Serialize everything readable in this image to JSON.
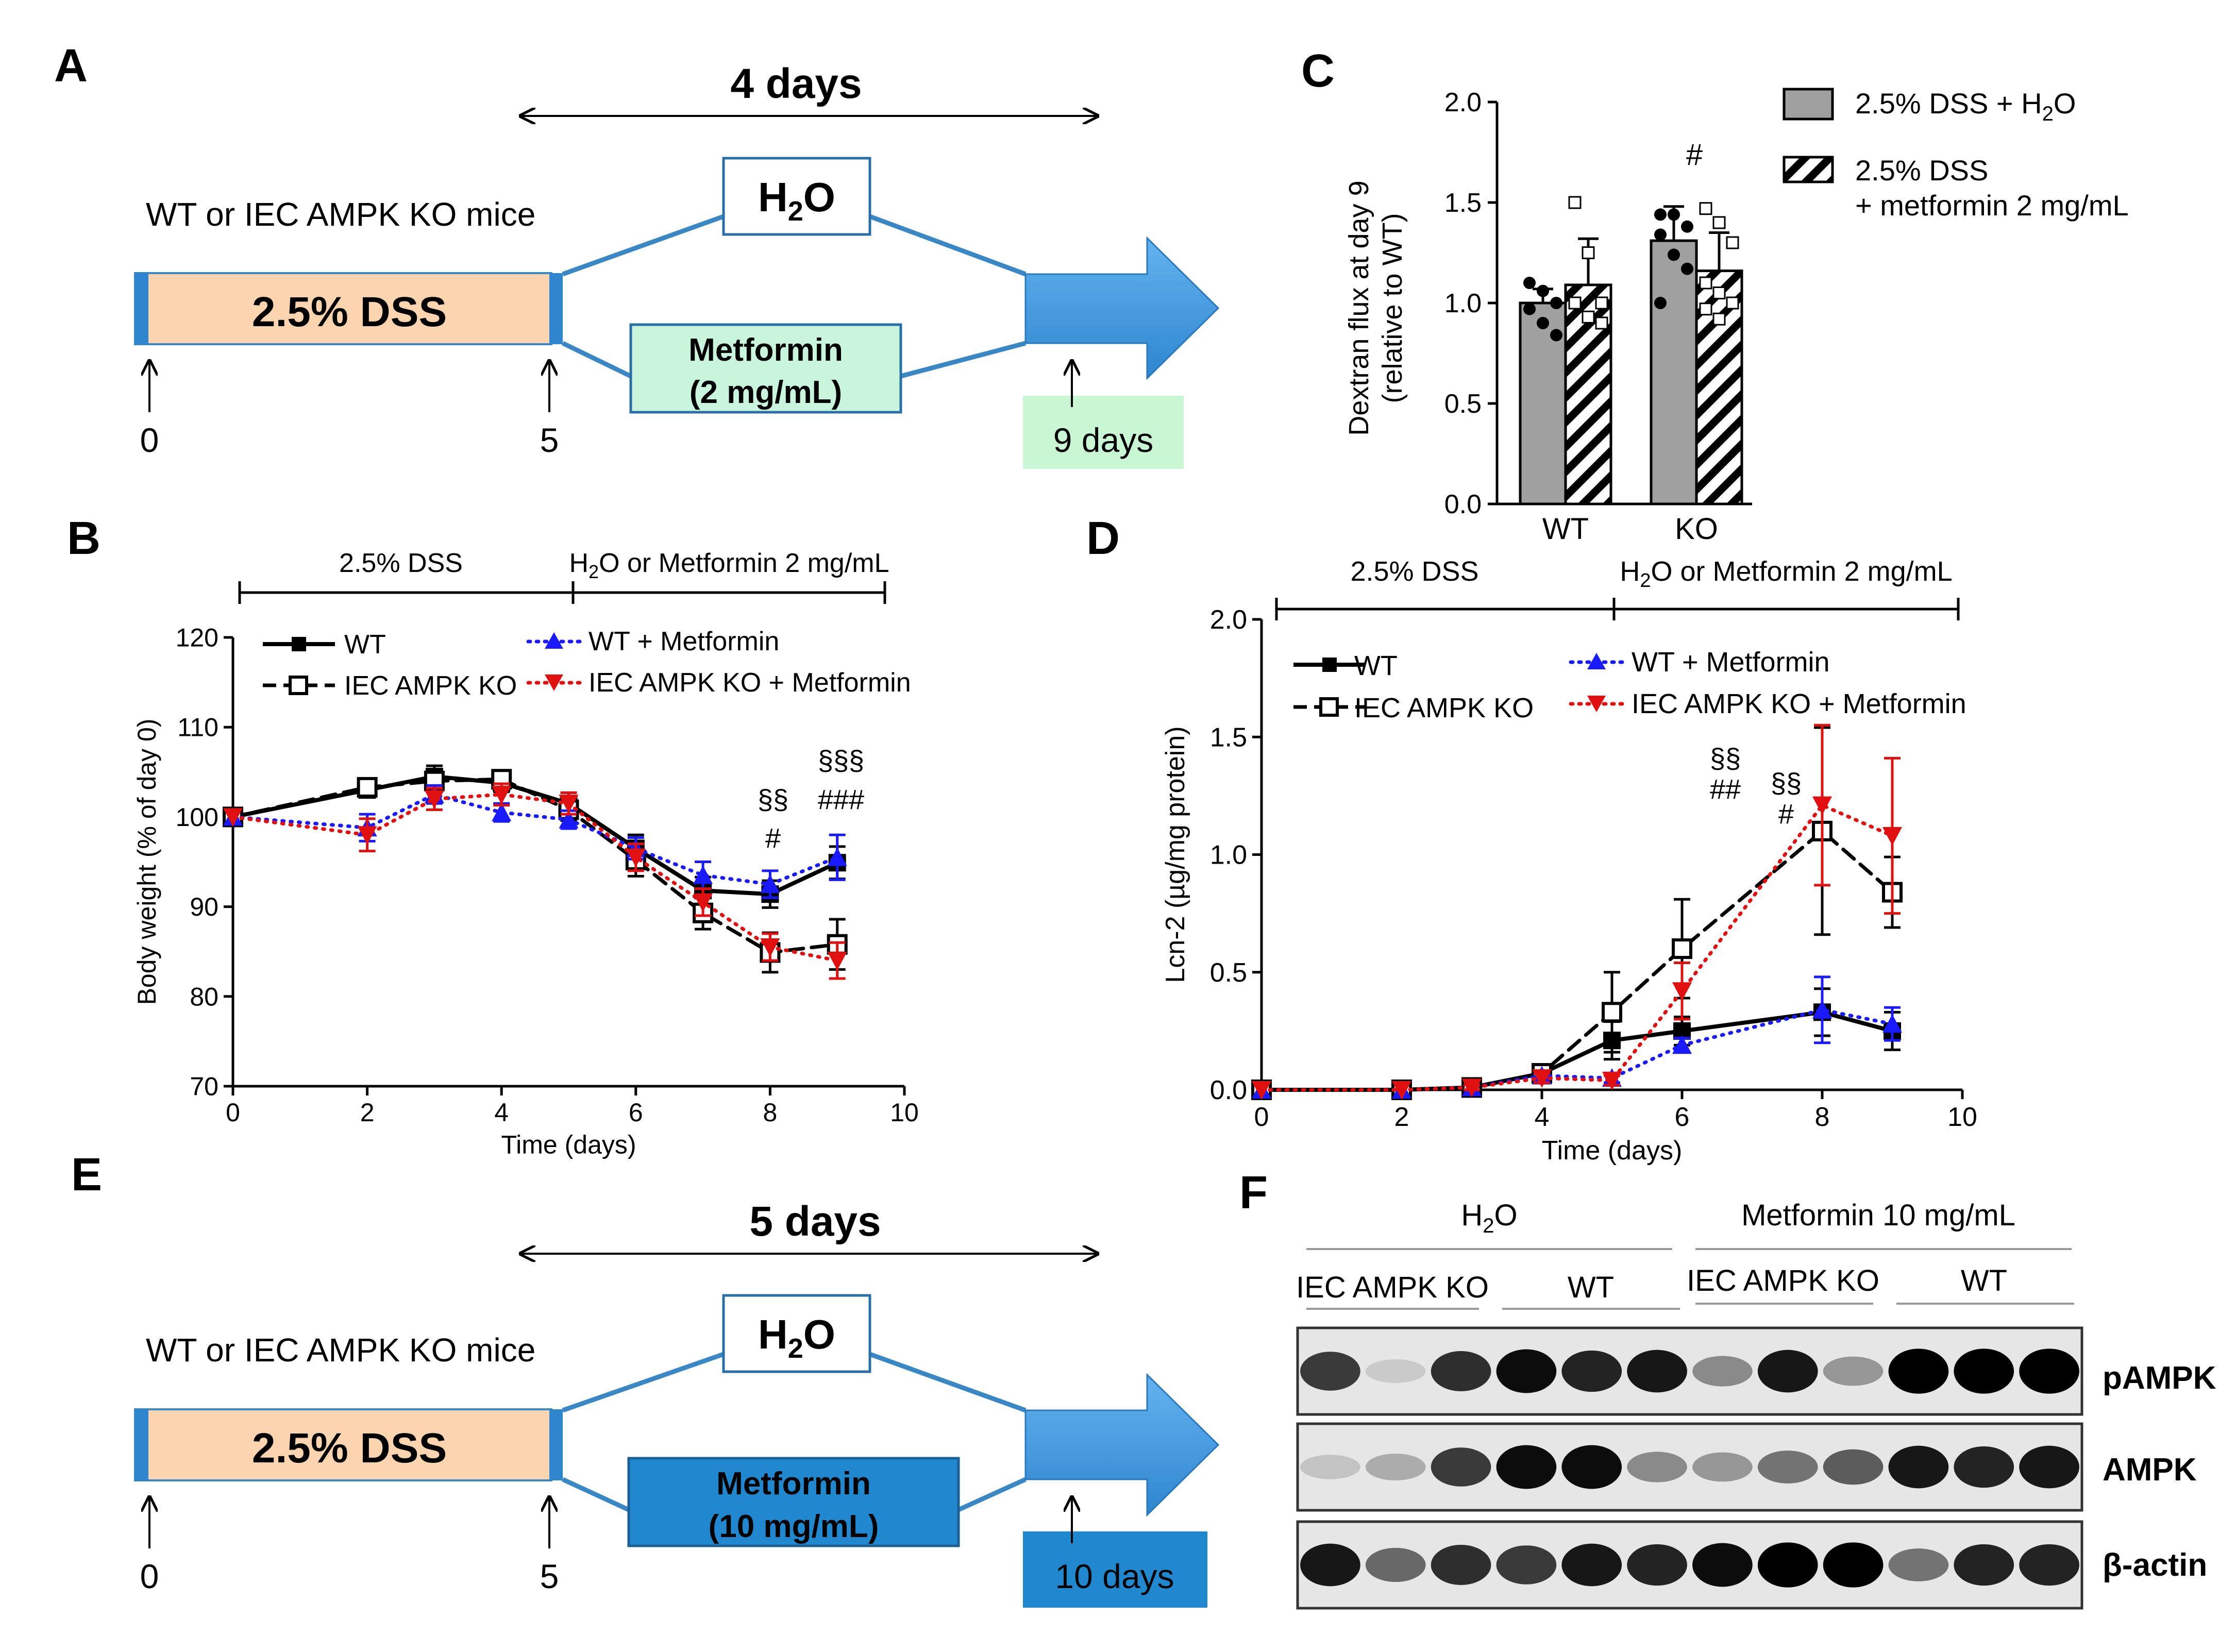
{
  "panels": {
    "A": {
      "letter": "A",
      "duration": "4 days",
      "mice": "WT or IEC AMPK KO mice",
      "dss": "2.5% DSS",
      "water_main": "H",
      "water_sub": "2",
      "water_tail": "O",
      "drug_line1": "Metformin",
      "drug_line2": "(2 mg/mL)",
      "day_start": "0",
      "day_mid": "5",
      "day_end": "9 days"
    },
    "B": {
      "letter": "B",
      "phase1": "2.5% DSS",
      "phase2_h": "H",
      "phase2_sub": "2",
      "phase2_tail": "O or Metformin 2 mg/mL",
      "legend": [
        "WT",
        "IEC AMPK KO",
        "WT + Metformin",
        "IEC AMPK KO + Metformin"
      ],
      "annotations": [
        "§§",
        "#",
        "§§§",
        "###"
      ]
    },
    "C": {
      "letter": "C",
      "legend1_main": "2.5% DSS + H",
      "legend1_sub": "2",
      "legend1_tail": "O",
      "legend2_line1": "2.5% DSS",
      "legend2_line2": "+ metformin 2 mg/mL",
      "annotation": "#"
    },
    "D": {
      "letter": "D",
      "phase1": "2.5% DSS",
      "phase2_h": "H",
      "phase2_sub": "2",
      "phase2_tail": "O or Metformin 2 mg/mL",
      "legend": [
        "WT",
        "IEC AMPK KO",
        "WT + Metformin",
        "IEC AMPK KO + Metformin"
      ],
      "annotations": [
        "§§",
        "##",
        "§§",
        "#"
      ]
    },
    "E": {
      "letter": "E",
      "duration": "5 days",
      "mice": "WT or IEC AMPK KO mice",
      "dss": "2.5% DSS",
      "water_main": "H",
      "water_sub": "2",
      "water_tail": "O",
      "drug_line1": "Metformin",
      "drug_line2": "(10 mg/mL)",
      "day_start": "0",
      "day_mid": "5",
      "day_end": "10 days"
    },
    "F": {
      "letter": "F",
      "group1_main": "H",
      "group1_sub": "2",
      "group1_tail": "O",
      "group2": "Metformin 10 mg/mL",
      "sub_labels": [
        "IEC AMPK KO",
        "WT",
        "IEC AMPK KO",
        "WT"
      ],
      "bands": [
        "pAMPK",
        "AMPK",
        "β-actin"
      ],
      "intensities": {
        "pAMPK": [
          0.75,
          0.12,
          0.8,
          0.95,
          0.85,
          0.9,
          0.4,
          0.9,
          0.35,
          1.0,
          1.0,
          1.0
        ],
        "AMPK": [
          0.15,
          0.25,
          0.75,
          0.95,
          0.95,
          0.4,
          0.35,
          0.5,
          0.6,
          0.9,
          0.85,
          0.9
        ],
        "β-actin": [
          0.9,
          0.55,
          0.8,
          0.75,
          0.9,
          0.85,
          0.95,
          1.0,
          1.0,
          0.5,
          0.85,
          0.85
        ]
      }
    }
  },
  "colors": {
    "wt": "#000000",
    "ko": "#000000",
    "wt_met": "#1a1aff",
    "ko_met": "#e01010",
    "dss_fill": "#fbd5b0",
    "flow_line": "#3a87c6",
    "arrow_fill": "#4a9ede",
    "met2_fill": "#c9f5dd",
    "met10_fill": "#1f88cf",
    "day9_fill": "#c9f7d4",
    "day10_fill": "#1f88cf",
    "bar_gray": "#a0a0a0"
  },
  "chart_data": [
    {
      "id": "B",
      "type": "line",
      "title": "",
      "xlabel": "Time (days)",
      "ylabel": "Body weight (% of day 0)",
      "xlim": [
        0,
        10
      ],
      "ylim": [
        70,
        120
      ],
      "xticks": [
        0,
        2,
        4,
        6,
        8,
        10
      ],
      "yticks": [
        70,
        80,
        90,
        100,
        110,
        120
      ],
      "series": [
        {
          "name": "WT",
          "style": "wt",
          "x": [
            0,
            2,
            3,
            4,
            5,
            6,
            7,
            8,
            9
          ],
          "y": [
            100,
            103,
            104.5,
            103.8,
            101.5,
            96.5,
            91.8,
            91.4,
            94.9
          ],
          "err": [
            0,
            0.8,
            1.2,
            1,
            1.2,
            1.5,
            1.5,
            1.5,
            1.8
          ]
        },
        {
          "name": "IEC AMPK KO",
          "style": "ko",
          "x": [
            0,
            2,
            3,
            4,
            5,
            6,
            7,
            8,
            9
          ],
          "y": [
            100,
            103.3,
            104,
            104.2,
            100.8,
            95.2,
            89.3,
            84.9,
            85.8
          ],
          "err": [
            0,
            0.8,
            1,
            0.9,
            1.2,
            1.8,
            1.8,
            2.2,
            2.8
          ]
        },
        {
          "name": "WT + Metformin",
          "style": "wt_met",
          "x": [
            0,
            2,
            3,
            4,
            5,
            6,
            7,
            8,
            9
          ],
          "y": [
            100,
            98.8,
            102.5,
            100.5,
            99.7,
            96.5,
            93.5,
            92.5,
            95.5
          ],
          "err": [
            0,
            1.5,
            1,
            1,
            1,
            1.2,
            1.5,
            1.5,
            2.5
          ]
        },
        {
          "name": "IEC AMPK KO + Metformin",
          "style": "ko_met",
          "x": [
            0,
            2,
            3,
            4,
            5,
            6,
            7,
            8,
            9
          ],
          "y": [
            100,
            98,
            102,
            102.5,
            101.5,
            95.5,
            90.5,
            85.5,
            84
          ],
          "err": [
            0,
            1.8,
            1.2,
            1.2,
            1.2,
            1.5,
            1.5,
            1.5,
            2
          ]
        }
      ]
    },
    {
      "id": "C",
      "type": "bar",
      "title": "",
      "categories": [
        "WT",
        "KO"
      ],
      "ylabel_line1": "Dextran flux at day 9",
      "ylabel_line2": "(relative to WT)",
      "ylim": [
        0,
        2
      ],
      "yticks": [
        "0.0",
        "0.5",
        "1.0",
        "1.5",
        "2.0"
      ],
      "series": [
        {
          "name": "2.5% DSS + H2O",
          "values": [
            1.0,
            1.31
          ],
          "err": [
            0.07,
            0.17
          ],
          "points": [
            [
              1.1,
              1.06,
              1.0,
              0.97,
              0.9,
              0.84
            ],
            [
              1.44,
              1.44,
              1.38,
              1.34,
              1.24,
              1.17,
              1.0
            ]
          ]
        },
        {
          "name": "2.5% DSS + metformin 2 mg/mL",
          "values": [
            1.09,
            1.16
          ],
          "err": [
            0.23,
            0.19
          ],
          "points": [
            [
              1.5,
              1.25,
              1.0,
              1.0,
              0.93,
              0.9
            ],
            [
              1.47,
              1.4,
              1.3,
              1.1,
              1.05,
              1.0,
              0.97,
              0.92
            ]
          ]
        }
      ]
    },
    {
      "id": "D",
      "type": "line",
      "title": "",
      "xlabel": "Time (days)",
      "ylabel": "Lcn-2 (µg/mg protein)",
      "xlim": [
        0,
        10
      ],
      "ylim": [
        0,
        2
      ],
      "xticks": [
        0,
        2,
        4,
        6,
        8,
        10
      ],
      "yticks": [
        "0.0",
        "0.5",
        "1.0",
        "1.5",
        "2.0"
      ],
      "series": [
        {
          "name": "WT",
          "style": "wt",
          "x": [
            0,
            2,
            3,
            4,
            5,
            6,
            8,
            9
          ],
          "y": [
            0,
            0,
            0.01,
            0.07,
            0.21,
            0.25,
            0.33,
            0.25
          ],
          "err": [
            0,
            0,
            0.01,
            0.02,
            0.08,
            0.06,
            0.1,
            0.08
          ]
        },
        {
          "name": "IEC AMPK KO",
          "style": "ko",
          "x": [
            0,
            2,
            3,
            4,
            5,
            6,
            8,
            9
          ],
          "y": [
            0,
            0,
            0.01,
            0.07,
            0.33,
            0.6,
            1.1,
            0.84
          ],
          "err": [
            0,
            0,
            0.01,
            0.02,
            0.17,
            0.21,
            0.44,
            0.15
          ]
        },
        {
          "name": "WT + Metformin",
          "style": "wt_met",
          "x": [
            0,
            2,
            3,
            4,
            5,
            6,
            8,
            9
          ],
          "y": [
            0,
            0,
            0.01,
            0.06,
            0.05,
            0.19,
            0.34,
            0.28
          ],
          "err": [
            0,
            0,
            0.01,
            0.02,
            0.02,
            0.03,
            0.14,
            0.07
          ]
        },
        {
          "name": "IEC AMPK KO + Metformin",
          "style": "ko_met",
          "x": [
            0,
            2,
            3,
            4,
            5,
            6,
            8,
            9
          ],
          "y": [
            0,
            0,
            0.01,
            0.05,
            0.04,
            0.42,
            1.21,
            1.08
          ],
          "err": [
            0,
            0,
            0.01,
            0.02,
            0.02,
            0.12,
            0.34,
            0.33
          ]
        }
      ]
    }
  ]
}
